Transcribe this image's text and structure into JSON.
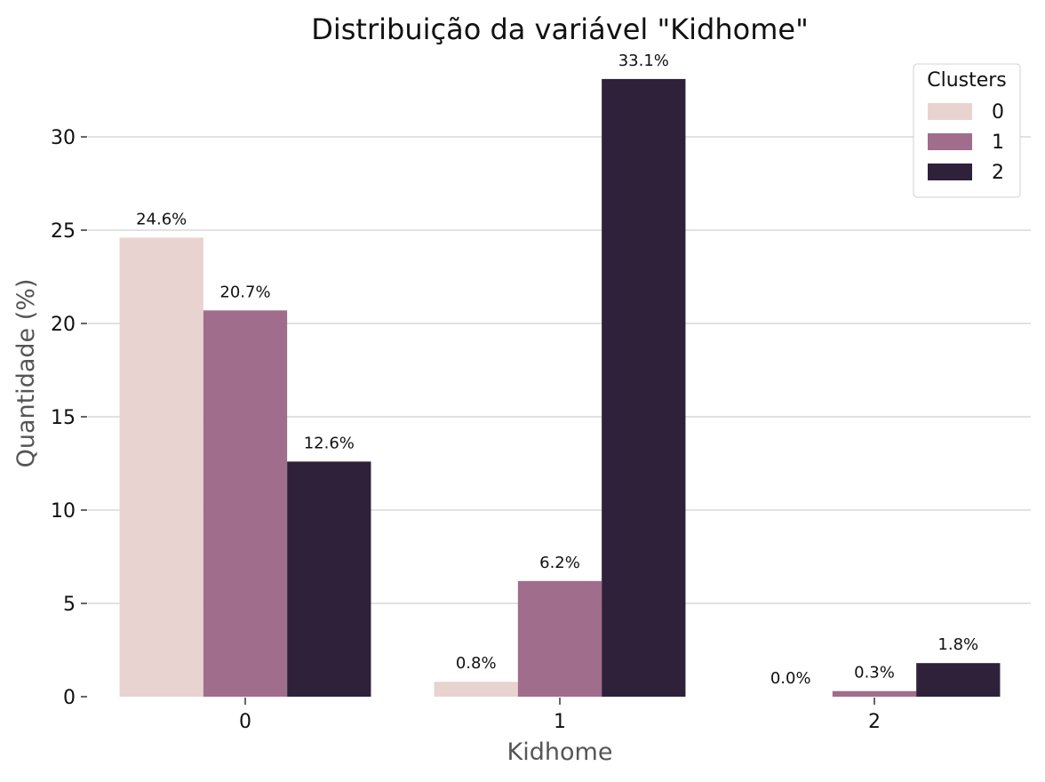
{
  "chart_data": {
    "type": "bar",
    "title": "Distribuição da variável \"Kidhome\"",
    "xlabel": "Kidhome",
    "ylabel": "Quantidade (%)",
    "categories": [
      "0",
      "1",
      "2"
    ],
    "series": [
      {
        "name": "0",
        "values": [
          24.6,
          0.8,
          0.0
        ],
        "labels": [
          "24.6%",
          "0.8%",
          "0.0%"
        ],
        "color": "#e8d3d0"
      },
      {
        "name": "1",
        "values": [
          20.7,
          6.2,
          0.3
        ],
        "labels": [
          "20.7%",
          "6.2%",
          "0.3%"
        ],
        "color": "#a06d8c"
      },
      {
        "name": "2",
        "values": [
          12.6,
          33.1,
          1.8
        ],
        "labels": [
          "12.6%",
          "33.1%",
          "1.8%"
        ],
        "color": "#2e2139"
      }
    ],
    "ylim": [
      0,
      34
    ],
    "yticks": [
      0,
      5,
      10,
      15,
      20,
      25,
      30
    ],
    "grid": "horizontal",
    "legend": {
      "title": "Clusters",
      "position": "top-right"
    }
  }
}
